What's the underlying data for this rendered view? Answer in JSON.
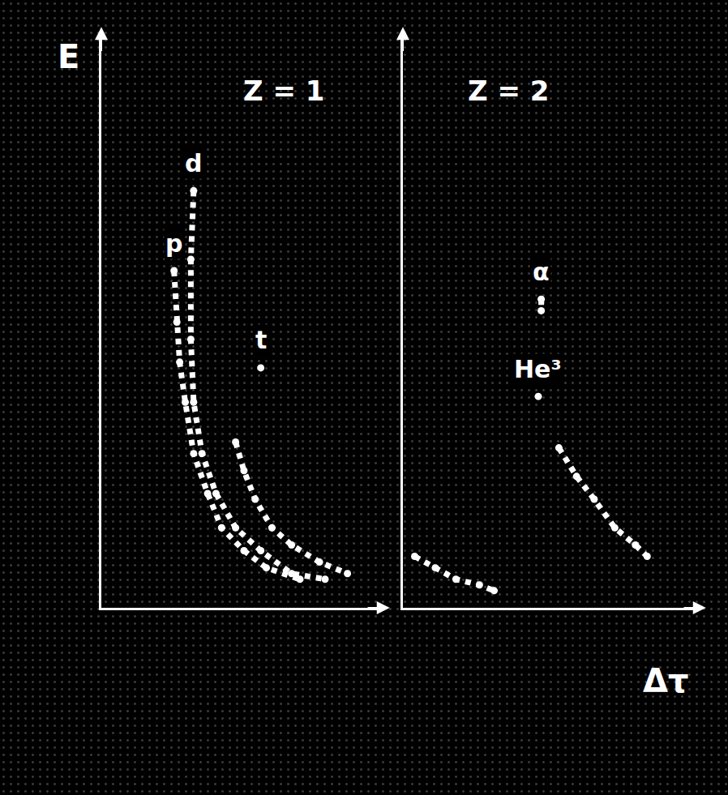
{
  "chart_data": [
    {
      "type": "scatter",
      "title": "Z = 1",
      "y_label": "E",
      "xlim": [
        0,
        100
      ],
      "ylim": [
        0,
        100
      ],
      "tick_labels": false,
      "grid": false,
      "marker": "circle",
      "line_style": "dot",
      "color": "#ffffff",
      "series": [
        {
          "name": "p",
          "x": [
            26,
            27,
            28,
            30,
            33,
            38,
            43,
            51,
            59,
            71
          ],
          "values": [
            59,
            50,
            43,
            36,
            27,
            20,
            14,
            10,
            7,
            5
          ]
        },
        {
          "name": "d",
          "x": [
            33,
            32,
            32,
            33,
            36,
            41,
            48,
            57,
            68,
            80
          ],
          "values": [
            73,
            61,
            47,
            36,
            27,
            20,
            14,
            10,
            6,
            5
          ]
        },
        {
          "name": "t",
          "x": [
            57,
            null,
            48,
            51,
            55,
            61,
            68,
            78,
            88
          ],
          "values": [
            42,
            null,
            29,
            24,
            19,
            14,
            11,
            8,
            6
          ]
        }
      ]
    },
    {
      "type": "scatter",
      "title": "Z = 2",
      "x_label": "Δτ",
      "xlim": [
        0,
        100
      ],
      "ylim": [
        0,
        100
      ],
      "tick_labels": false,
      "grid": false,
      "marker": "circle",
      "line_style": "dot",
      "color": "#ffffff",
      "series": [
        {
          "name": "He³",
          "x": [
            46,
            null,
            4,
            11,
            18,
            26,
            31
          ],
          "values": [
            37,
            null,
            9,
            7,
            5,
            4,
            3
          ]
        },
        {
          "name": "α",
          "x": [
            47,
            47,
            null,
            53,
            59,
            65,
            72,
            79,
            83
          ],
          "values": [
            54,
            52,
            null,
            28,
            23,
            19,
            14,
            11,
            9
          ]
        }
      ]
    }
  ]
}
